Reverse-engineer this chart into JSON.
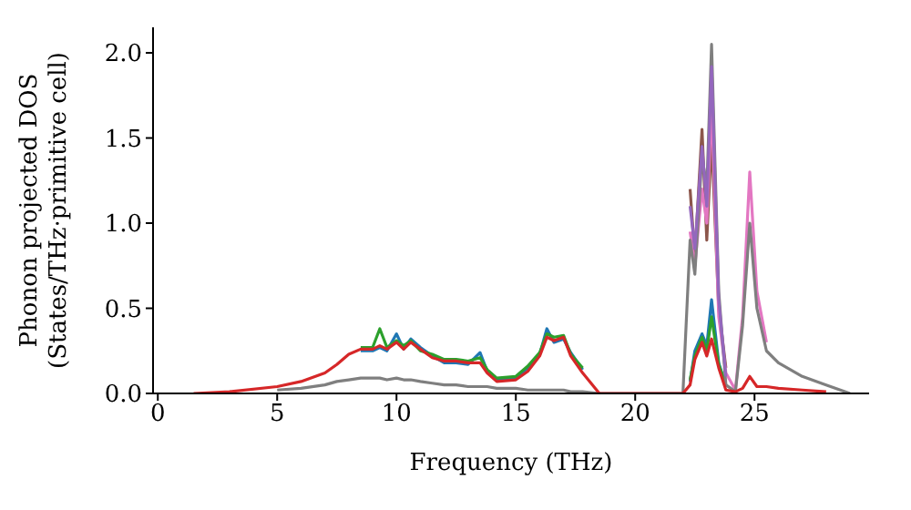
{
  "chart_data": {
    "type": "line",
    "xlabel": "Frequency (THz)",
    "ylabel": "Phonon projected DOS\n(States/THz·primitive cell)",
    "x": [
      1.5,
      3,
      5,
      6,
      7,
      7.5,
      8,
      8.5,
      9,
      9.3,
      9.6,
      10,
      10.3,
      10.6,
      11,
      11.5,
      12,
      12.5,
      13,
      13.5,
      13.8,
      14.2,
      15,
      15.5,
      16,
      16.3,
      16.6,
      17,
      17.3,
      17.8,
      18.5,
      22,
      22.3,
      22.5,
      22.8,
      23,
      23.2,
      23.5,
      23.8,
      24.2,
      24.5,
      24.8,
      25.1,
      25.5,
      26,
      27,
      28,
      29
    ],
    "series": [
      {
        "color": "#1f77b4",
        "values": [
          null,
          null,
          null,
          null,
          null,
          null,
          null,
          0.25,
          0.25,
          0.27,
          0.25,
          0.35,
          0.26,
          0.32,
          0.27,
          0.22,
          0.18,
          0.18,
          0.17,
          0.24,
          0.13,
          0.08,
          0.09,
          0.15,
          0.23,
          0.38,
          0.3,
          0.32,
          0.24,
          0.14,
          null,
          null,
          0.07,
          0.25,
          0.35,
          0.28,
          0.55,
          0.18,
          0.04,
          null,
          null,
          null,
          null,
          null,
          null,
          null,
          null,
          null
        ]
      },
      {
        "color": "#2ca02c",
        "values": [
          null,
          null,
          null,
          null,
          null,
          null,
          null,
          0.27,
          0.27,
          0.38,
          0.27,
          0.31,
          0.28,
          0.31,
          0.25,
          0.23,
          0.2,
          0.2,
          0.19,
          0.21,
          0.14,
          0.09,
          0.1,
          0.16,
          0.24,
          0.35,
          0.33,
          0.34,
          0.23,
          0.15,
          null,
          null,
          0.08,
          0.22,
          0.33,
          0.25,
          0.45,
          0.17,
          0.05,
          null,
          null,
          null,
          null,
          null,
          null,
          null,
          null,
          null
        ]
      },
      {
        "color": "#8c564b",
        "values": [
          null,
          null,
          null,
          null,
          null,
          null,
          null,
          null,
          null,
          null,
          null,
          null,
          null,
          null,
          null,
          null,
          null,
          null,
          null,
          null,
          null,
          null,
          null,
          null,
          null,
          null,
          null,
          null,
          null,
          null,
          null,
          null,
          1.2,
          0.8,
          1.55,
          0.9,
          1.5,
          0.5,
          0.15,
          null,
          null,
          null,
          null,
          null,
          null,
          null,
          null,
          null
        ]
      },
      {
        "color": "#e377c2",
        "values": [
          null,
          null,
          null,
          null,
          null,
          null,
          null,
          null,
          null,
          null,
          null,
          null,
          null,
          null,
          null,
          null,
          null,
          null,
          null,
          null,
          null,
          null,
          null,
          null,
          null,
          null,
          null,
          null,
          null,
          null,
          null,
          null,
          0.95,
          0.75,
          1.2,
          1.0,
          1.7,
          0.45,
          0.12,
          0.02,
          0.45,
          1.3,
          0.6,
          0.3,
          null,
          null,
          null,
          null
        ]
      },
      {
        "color": "#7f7f7f",
        "values": [
          null,
          null,
          0.02,
          0.03,
          0.05,
          0.07,
          0.08,
          0.09,
          0.09,
          0.09,
          0.08,
          0.09,
          0.08,
          0.08,
          0.07,
          0.06,
          0.05,
          0.05,
          0.04,
          0.04,
          0.04,
          0.03,
          0.03,
          0.02,
          0.02,
          0.02,
          0.02,
          0.02,
          0.01,
          0.01,
          0,
          0,
          0.9,
          0.7,
          1.4,
          1.2,
          2.05,
          0.6,
          0.05,
          0.01,
          0.4,
          1.0,
          0.5,
          0.25,
          0.18,
          0.1,
          0.05,
          0
        ]
      },
      {
        "color": "#9467bd",
        "values": [
          null,
          null,
          null,
          null,
          null,
          null,
          null,
          null,
          null,
          null,
          null,
          null,
          null,
          null,
          null,
          null,
          null,
          null,
          null,
          null,
          null,
          null,
          null,
          null,
          null,
          null,
          null,
          null,
          null,
          null,
          null,
          null,
          1.1,
          0.85,
          1.45,
          1.1,
          1.92,
          0.55,
          0.1,
          null,
          null,
          null,
          null,
          null,
          null,
          null,
          null,
          null
        ]
      },
      {
        "color": "#d62728",
        "values": [
          0,
          0.01,
          0.04,
          0.07,
          0.12,
          0.17,
          0.23,
          0.26,
          0.26,
          0.28,
          0.26,
          0.3,
          0.26,
          0.3,
          0.26,
          0.21,
          0.19,
          0.19,
          0.18,
          0.18,
          0.12,
          0.07,
          0.08,
          0.13,
          0.22,
          0.33,
          0.31,
          0.33,
          0.22,
          0.12,
          0,
          0,
          0.05,
          0.2,
          0.3,
          0.22,
          0.32,
          0.15,
          0.02,
          0.01,
          0.03,
          0.1,
          0.04,
          0.04,
          0.03,
          0.02,
          0.01,
          null
        ]
      }
    ],
    "xlim": [
      -0.2,
      29.8
    ],
    "xticks": [
      0,
      5,
      10,
      15,
      20,
      25
    ],
    "ylim": [
      0,
      2.15
    ],
    "yticks": [
      {
        "value": 0,
        "label": "0.0"
      },
      {
        "value": 0.5,
        "label": "0.5"
      },
      {
        "value": 1,
        "label": "1.0"
      },
      {
        "value": 1.5,
        "label": "1.5"
      },
      {
        "value": 2,
        "label": "2.0"
      }
    ],
    "grid": false,
    "legend": false,
    "marker": "none",
    "line_style": "solid"
  }
}
